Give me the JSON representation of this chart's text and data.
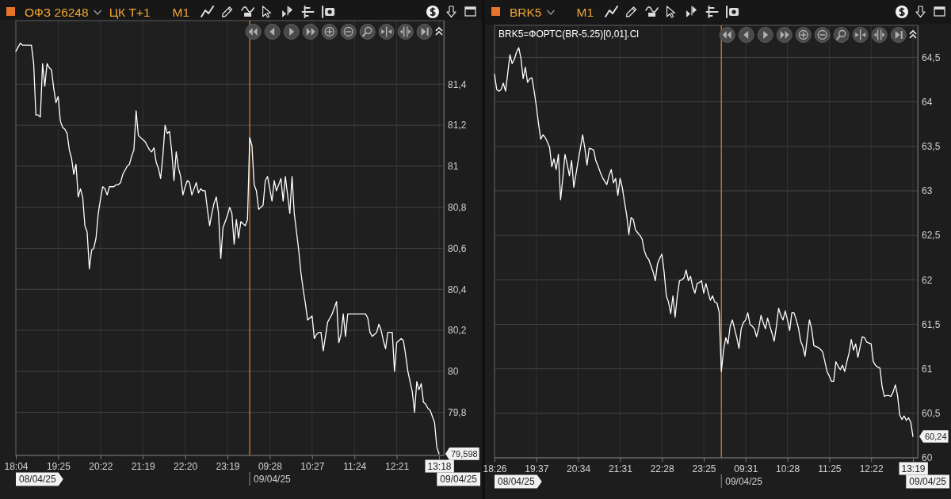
{
  "chart_data": [
    {
      "type": "line",
      "title": "ОФЗ 26248",
      "subtitle": "ЦК Т+1",
      "annotations": [
        "M1",
        "08/04/25",
        "09/04/25",
        "09/04/25",
        {
          "text": "79,598",
          "x": "13:18",
          "y": 79.598
        }
      ],
      "categories": [
        "18:04",
        null,
        null,
        null,
        null,
        null,
        null,
        null,
        null,
        null,
        null,
        null,
        null,
        null,
        null,
        null,
        null,
        null,
        null,
        "19:25",
        null,
        null,
        null,
        null,
        null,
        null,
        null,
        null,
        null,
        null,
        null,
        null,
        null,
        null,
        null,
        null,
        null,
        null,
        "20:22",
        null,
        null,
        null,
        null,
        null,
        null,
        null,
        null,
        null,
        null,
        null,
        null,
        null,
        null,
        null,
        null,
        null,
        null,
        "21:19",
        null,
        null,
        null,
        null,
        null,
        null,
        null,
        null,
        null,
        null,
        null,
        null,
        null,
        null,
        null,
        null,
        null,
        null,
        "22:20",
        null,
        null,
        null,
        null,
        null,
        null,
        null,
        null,
        null,
        null,
        null,
        null,
        null,
        null,
        null,
        null,
        null,
        null,
        "23:19",
        null,
        null,
        null,
        null,
        null,
        null,
        null,
        null,
        null,
        null,
        null,
        null,
        null,
        null,
        null,
        null,
        null,
        null,
        "09:28",
        null,
        null,
        null,
        null,
        null,
        null,
        null,
        null,
        null,
        null,
        null,
        null,
        null,
        null,
        null,
        null,
        null,
        null,
        "10:27",
        null,
        null,
        null,
        null,
        null,
        null,
        null,
        null,
        null,
        null,
        null,
        null,
        null,
        null,
        null,
        null,
        null,
        null,
        "11:24",
        null,
        null,
        null,
        null,
        null,
        null,
        null,
        null,
        null,
        null,
        null,
        null,
        null,
        null,
        null,
        null,
        null,
        null,
        "12:21",
        null,
        null,
        null,
        null,
        null,
        null,
        null,
        null,
        null,
        null,
        null,
        null,
        null,
        null,
        null,
        null,
        null,
        null,
        "13:18"
      ],
      "series": [
        {
          "color": "#ffffff",
          "values": [
            81.56,
            81.58,
            81.6,
            81.59,
            81.59,
            81.59,
            81.59,
            81.59,
            81.5,
            81.25,
            81.25,
            81.24,
            81.5,
            81.39,
            81.5,
            81.48,
            81.47,
            81.38,
            81.31,
            81.34,
            81.22,
            81.19,
            81.18,
            81.16,
            81.08,
            81.04,
            80.96,
            81.01,
            80.85,
            80.89,
            80.85,
            80.71,
            80.68,
            80.5,
            80.59,
            80.6,
            80.65,
            80.77,
            80.84,
            80.9,
            80.89,
            80.86,
            80.9,
            80.9,
            80.9,
            80.91,
            80.91,
            80.92,
            80.96,
            80.98,
            81.0,
            81.01,
            81.05,
            81.08,
            81.27,
            81.15,
            81.14,
            81.13,
            81.12,
            81.1,
            81.08,
            81.07,
            81.09,
            81.02,
            80.99,
            80.94,
            81.05,
            81.2,
            81.16,
            81.17,
            81.07,
            80.93,
            81.07,
            80.99,
            80.95,
            80.86,
            80.9,
            80.93,
            80.92,
            80.86,
            80.89,
            80.92,
            80.87,
            80.89,
            80.88,
            80.88,
            80.79,
            80.71,
            80.77,
            80.82,
            80.85,
            80.77,
            80.55,
            80.7,
            80.73,
            80.76,
            80.8,
            80.77,
            80.62,
            80.74,
            80.65,
            80.73,
            80.72,
            80.71,
            80.74,
            81.14,
            81.1,
            80.91,
            80.88,
            80.79,
            80.8,
            80.81,
            80.93,
            80.95,
            80.89,
            80.83,
            80.93,
            80.88,
            80.91,
            80.94,
            80.83,
            80.95,
            80.86,
            80.77,
            80.95,
            80.77,
            80.68,
            80.59,
            80.48,
            80.4,
            80.33,
            80.25,
            80.26,
            80.27,
            80.16,
            80.18,
            80.19,
            80.19,
            80.1,
            80.17,
            80.24,
            80.26,
            80.28,
            80.31,
            80.34,
            80.14,
            80.18,
            80.28,
            80.17,
            80.28,
            80.28,
            80.28,
            80.28,
            80.28,
            80.28,
            80.28,
            80.28,
            80.28,
            80.26,
            80.19,
            80.17,
            80.18,
            80.19,
            80.23,
            80.2,
            80.15,
            80.11,
            80.19,
            80.19,
            80.19,
            80.0,
            80.14,
            80.15,
            80.16,
            80.15,
            80.08,
            80.0,
            79.95,
            79.9,
            79.8,
            79.95,
            79.91,
            79.94,
            79.85,
            79.84,
            79.82,
            79.81,
            79.78,
            79.75,
            79.63,
            79.598
          ]
        }
      ],
      "ylim": [
        79.59,
        81.71
      ],
      "yticks": [
        {
          "value": 79.8,
          "label": "79,8"
        },
        80,
        {
          "value": 80.2,
          "label": "80,2"
        },
        {
          "value": 80.4,
          "label": "80,4"
        },
        {
          "value": 80.6,
          "label": "80,6"
        },
        {
          "value": 80.8,
          "label": "80,8"
        },
        81,
        {
          "value": 81.2,
          "label": "81,2"
        },
        {
          "value": 81.4,
          "label": "81,4"
        }
      ],
      "grid": true
    },
    {
      "type": "line",
      "title": "BRK5",
      "annotations": [
        "M1",
        "08/04/25",
        "09/04/25",
        "09/04/25",
        {
          "text": "60,24",
          "x": "13:19",
          "y": 60.24
        }
      ],
      "categories": [
        "18:26",
        null,
        null,
        null,
        null,
        null,
        null,
        null,
        null,
        null,
        null,
        null,
        null,
        null,
        null,
        null,
        null,
        null,
        null,
        "19:37",
        null,
        null,
        null,
        null,
        null,
        null,
        null,
        null,
        null,
        null,
        null,
        null,
        null,
        null,
        null,
        null,
        null,
        null,
        "20:34",
        null,
        null,
        null,
        null,
        null,
        null,
        null,
        null,
        null,
        null,
        null,
        null,
        null,
        null,
        null,
        null,
        null,
        null,
        "21:31",
        null,
        null,
        null,
        null,
        null,
        null,
        null,
        null,
        null,
        null,
        null,
        null,
        null,
        null,
        null,
        null,
        null,
        null,
        "22:28",
        null,
        null,
        null,
        null,
        null,
        null,
        null,
        null,
        null,
        null,
        null,
        null,
        null,
        null,
        null,
        null,
        null,
        null,
        "23:25",
        null,
        null,
        null,
        null,
        null,
        null,
        null,
        null,
        null,
        null,
        null,
        null,
        null,
        null,
        null,
        null,
        null,
        null,
        "09:31",
        null,
        null,
        null,
        null,
        null,
        null,
        null,
        null,
        null,
        null,
        null,
        null,
        null,
        null,
        null,
        null,
        null,
        null,
        "10:28",
        null,
        null,
        null,
        null,
        null,
        null,
        null,
        null,
        null,
        null,
        null,
        null,
        null,
        null,
        null,
        null,
        null,
        null,
        "11:25",
        null,
        null,
        null,
        null,
        null,
        null,
        null,
        null,
        null,
        null,
        null,
        null,
        null,
        null,
        null,
        null,
        null,
        null,
        "12:22",
        null,
        null,
        null,
        null,
        null,
        null,
        null,
        null,
        null,
        null,
        null,
        null,
        null,
        null,
        null,
        null,
        null,
        null,
        "13:19"
      ],
      "series": [
        {
          "name": "BRK5=ФОРТС(BR-5.25)[0,01].Cl",
          "color": "#ffffff",
          "values": [
            64.31,
            64.14,
            64.12,
            64.14,
            64.21,
            64.12,
            64.32,
            64.53,
            64.43,
            64.48,
            64.56,
            64.61,
            64.49,
            64.26,
            64.39,
            64.22,
            64.26,
            64.27,
            64.12,
            63.95,
            63.75,
            63.58,
            63.63,
            63.6,
            63.55,
            63.49,
            63.27,
            63.36,
            63.24,
            63.41,
            62.9,
            63.14,
            63.41,
            63.3,
            63.17,
            63.34,
            63.04,
            63.19,
            63.34,
            63.48,
            63.63,
            63.48,
            63.29,
            63.48,
            63.47,
            63.46,
            63.34,
            63.28,
            63.21,
            63.15,
            63.11,
            63.07,
            63.17,
            63.24,
            63.09,
            63.14,
            62.95,
            63.14,
            63.04,
            62.88,
            62.73,
            62.51,
            62.7,
            62.68,
            62.56,
            62.53,
            62.5,
            62.46,
            62.33,
            62.26,
            62.23,
            62.16,
            62.09,
            61.99,
            62.18,
            62.24,
            62.29,
            62.09,
            61.82,
            61.75,
            61.62,
            61.82,
            61.58,
            61.82,
            61.99,
            62.0,
            62.02,
            62.11,
            61.99,
            62.04,
            61.92,
            61.85,
            61.96,
            61.97,
            61.99,
            61.85,
            61.96,
            61.86,
            61.77,
            61.82,
            61.75,
            61.74,
            61.64,
            60.97,
            61.21,
            61.35,
            61.28,
            61.48,
            61.55,
            61.45,
            61.35,
            61.23,
            61.45,
            61.52,
            61.55,
            61.63,
            61.5,
            61.48,
            61.45,
            61.36,
            61.46,
            61.6,
            61.52,
            61.45,
            61.57,
            61.48,
            61.4,
            61.31,
            61.48,
            61.68,
            61.6,
            61.55,
            61.65,
            61.55,
            61.43,
            61.63,
            61.63,
            61.55,
            61.46,
            61.31,
            61.25,
            61.14,
            61.35,
            61.55,
            61.45,
            61.26,
            61.25,
            61.24,
            61.22,
            61.19,
            61.08,
            60.97,
            60.92,
            60.86,
            60.86,
            61.08,
            61.03,
            60.99,
            61.04,
            60.97,
            61.08,
            61.18,
            61.33,
            61.21,
            61.28,
            61.13,
            61.25,
            61.36,
            61.35,
            61.3,
            61.29,
            61.28,
            61.08,
            61.04,
            61.02,
            61.01,
            60.8,
            60.69,
            60.7,
            60.7,
            60.69,
            60.74,
            60.82,
            60.7,
            60.48,
            60.43,
            60.47,
            60.42,
            60.45,
            60.4,
            60.24
          ]
        }
      ],
      "ylim": [
        60,
        64.86
      ],
      "yticks": [
        60,
        {
          "value": 60.5,
          "label": "60,5"
        },
        61,
        {
          "value": 61.5,
          "label": "61,5"
        },
        62,
        {
          "value": 62.5,
          "label": "62,5"
        },
        63,
        {
          "value": 63.5,
          "label": "63,5"
        },
        64,
        {
          "value": 64.5,
          "label": "64,5"
        }
      ],
      "grid": true,
      "legend": "top left"
    }
  ]
}
